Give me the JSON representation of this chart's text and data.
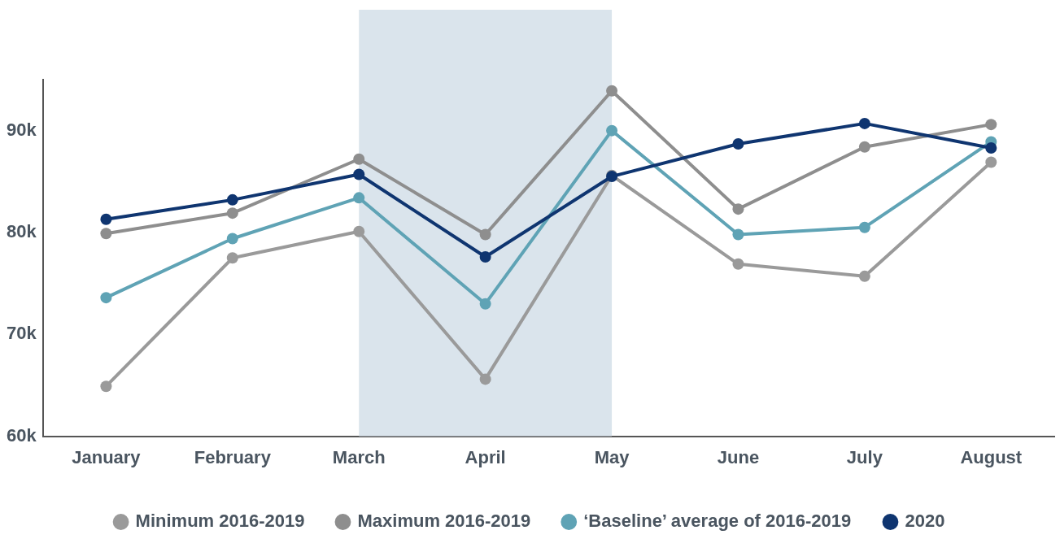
{
  "chart_data": {
    "type": "line",
    "categories": [
      "January",
      "February",
      "March",
      "April",
      "May",
      "June",
      "July",
      "August"
    ],
    "series": [
      {
        "name": "Minimum 2016-2019",
        "color": "#9a9a9a",
        "values": [
          64900,
          77500,
          80100,
          65600,
          85600,
          76900,
          75700,
          86900
        ]
      },
      {
        "name": "Maximum 2016-2019",
        "color": "#8e8e8e",
        "values": [
          79900,
          81900,
          87200,
          79800,
          93900,
          82300,
          88400,
          90600
        ]
      },
      {
        "name": "‘Baseline’ average of 2016-2019",
        "color": "#5fa3b5",
        "values": [
          73600,
          79400,
          83400,
          73000,
          90000,
          79800,
          80500,
          88900
        ]
      },
      {
        "name": "2020",
        "color": "#0f3570",
        "values": [
          81300,
          83200,
          85700,
          77600,
          85500,
          88700,
          90700,
          88300
        ]
      }
    ],
    "ylim": [
      60000,
      95000
    ],
    "yticks": [
      {
        "value": 60000,
        "label": "60k"
      },
      {
        "value": 70000,
        "label": "70k"
      },
      {
        "value": 80000,
        "label": "80k"
      },
      {
        "value": 90000,
        "label": "90k"
      }
    ],
    "bands": [
      {
        "axis": "x",
        "from": "March",
        "to": "May",
        "color": "#dae4ec"
      }
    ],
    "grid": false,
    "legend": "bottom",
    "marker": "circle",
    "line_style": "solid"
  }
}
